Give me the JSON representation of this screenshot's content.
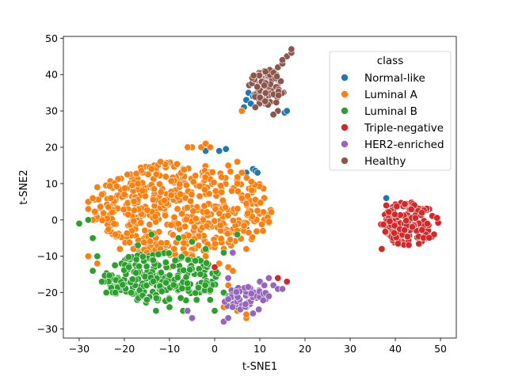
{
  "chart_data": {
    "type": "scatter",
    "title": "",
    "xlabel": "t-SNE1",
    "ylabel": "t-SNE2",
    "xlim": [
      -33.5,
      53.5
    ],
    "ylim": [
      -32.5,
      50.5
    ],
    "xticks": [
      -30,
      -20,
      -10,
      0,
      10,
      20,
      30,
      40,
      50
    ],
    "yticks": [
      -30,
      -20,
      -10,
      0,
      10,
      20,
      30,
      40,
      50
    ],
    "grid": false,
    "legend_title": "class",
    "legend_position": "upper-right",
    "series": [
      {
        "name": "Normal-like",
        "color": "#1f77b4",
        "points": [
          [
            -2,
            19
          ],
          [
            1,
            19
          ],
          [
            2.5,
            19.5
          ],
          [
            7,
            13
          ],
          [
            8.5,
            14
          ],
          [
            9,
            13.5
          ],
          [
            7,
            -2.5
          ],
          [
            4.5,
            -2
          ],
          [
            6.5,
            31
          ],
          [
            7,
            33
          ],
          [
            7.5,
            35
          ],
          [
            8,
            32
          ],
          [
            8.5,
            34
          ],
          [
            15.5,
            29.5
          ],
          [
            16,
            30
          ],
          [
            38,
            6
          ],
          [
            9.5,
            13
          ]
        ]
      },
      {
        "name": "Luminal A",
        "color": "#ff7f0e",
        "cluster": {
          "cx": -7,
          "cy": 3,
          "rx": 20,
          "ry": 13,
          "n": 520,
          "seed": 11
        },
        "points": [
          [
            -28,
            5
          ],
          [
            -28,
            3
          ],
          [
            -27,
            0
          ],
          [
            -28,
            -10
          ],
          [
            -26,
            -12
          ],
          [
            -26,
            9
          ],
          [
            -22,
            -4
          ],
          [
            -21,
            -8
          ],
          [
            -18,
            -8
          ],
          [
            -15,
            -9
          ],
          [
            -12,
            -8
          ],
          [
            -9,
            -8
          ],
          [
            -5,
            -10
          ],
          [
            -2,
            -10
          ],
          [
            1,
            -12
          ],
          [
            3,
            -13
          ],
          [
            4,
            -14
          ],
          [
            7,
            -8
          ],
          [
            3,
            -18
          ],
          [
            4,
            -20
          ],
          [
            5,
            -22
          ],
          [
            5,
            -25
          ],
          [
            7,
            -27
          ],
          [
            7,
            -26
          ],
          [
            -3,
            20
          ],
          [
            -5,
            20
          ],
          [
            -6,
            20
          ],
          [
            -2,
            21
          ],
          [
            -1,
            20
          ],
          [
            3,
            15
          ],
          [
            5,
            16
          ],
          [
            6,
            13
          ],
          [
            5,
            10
          ],
          [
            6,
            6
          ],
          [
            5,
            -3
          ],
          [
            -12,
            16
          ],
          [
            -14,
            14
          ],
          [
            -17,
            10
          ],
          [
            -20,
            7
          ],
          [
            -23,
            6
          ],
          [
            -25,
            7
          ],
          [
            -27,
            6
          ],
          [
            -13,
            -12
          ],
          [
            -10,
            -13
          ],
          [
            -7,
            -14
          ],
          [
            -3,
            -14
          ],
          [
            2,
            -24
          ],
          [
            6,
            30
          ]
        ]
      },
      {
        "name": "Luminal B",
        "color": "#2ca02c",
        "cluster": {
          "cx": -12,
          "cy": -16,
          "rx": 13,
          "ry": 7,
          "n": 230,
          "seed": 29
        },
        "points": [
          [
            -30,
            -1
          ],
          [
            -28,
            0
          ],
          [
            -27,
            -5
          ],
          [
            -26,
            -10
          ],
          [
            -27,
            -14
          ],
          [
            -25,
            -17
          ],
          [
            -24,
            -20
          ],
          [
            -22,
            -20
          ],
          [
            -15,
            -22
          ],
          [
            -13,
            -25
          ],
          [
            -10,
            -24
          ],
          [
            -7,
            -25
          ],
          [
            -4,
            -22
          ],
          [
            -1,
            -22
          ],
          [
            0,
            -25
          ],
          [
            2,
            -20
          ],
          [
            3,
            -21
          ],
          [
            4,
            -23
          ],
          [
            5,
            -19
          ],
          [
            5,
            -24
          ],
          [
            -8,
            -5
          ],
          [
            -5,
            -6
          ],
          [
            -2,
            -8
          ],
          [
            2,
            -9
          ],
          [
            5,
            -4
          ],
          [
            -19,
            -13
          ],
          [
            -17,
            -7
          ],
          [
            -14,
            -4
          ]
        ]
      },
      {
        "name": "Triple-negative",
        "color": "#d62728",
        "cluster": {
          "cx": 43,
          "cy": -1,
          "rx": 6.5,
          "ry": 6,
          "n": 150,
          "seed": 47
        },
        "points": [
          [
            0,
            -13
          ],
          [
            12,
            -16
          ],
          [
            14,
            -16
          ],
          [
            16,
            -17
          ],
          [
            38,
            4
          ],
          [
            37,
            -8
          ]
        ]
      },
      {
        "name": "HER2-enriched",
        "color": "#9467bd",
        "cluster": {
          "cx": 7,
          "cy": -22,
          "rx": 5,
          "ry": 4,
          "n": 55,
          "seed": 53
        },
        "points": [
          [
            -6,
            -25
          ],
          [
            -5,
            -27
          ],
          [
            3,
            -16
          ],
          [
            4,
            -9
          ],
          [
            2,
            -28
          ],
          [
            3,
            -27
          ],
          [
            10,
            -17
          ],
          [
            11,
            -18
          ],
          [
            13,
            -18
          ],
          [
            14,
            -19
          ],
          [
            12,
            -16
          ],
          [
            15,
            -19
          ],
          [
            12,
            -21
          ]
        ]
      },
      {
        "name": "Healthy",
        "color": "#8c564b",
        "cluster": {
          "cx": 11.5,
          "cy": 36.5,
          "rx": 4,
          "ry": 5,
          "n": 95,
          "seed": 71
        },
        "points": [
          [
            14,
            42
          ],
          [
            15,
            43
          ],
          [
            16,
            45
          ],
          [
            17,
            46
          ],
          [
            17,
            47
          ],
          [
            15,
            44
          ],
          [
            9,
            31
          ],
          [
            14,
            30
          ],
          [
            13,
            29
          ]
        ]
      }
    ]
  }
}
